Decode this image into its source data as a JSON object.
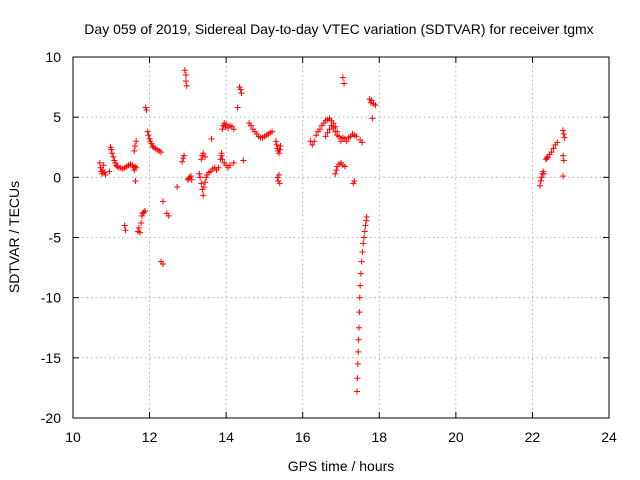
{
  "chart_data": {
    "type": "scatter",
    "title": "Day 059 of 2019, Sidereal Day-to-day VTEC variation (SDTVAR) for receiver tgmx",
    "xlabel": "GPS time / hours",
    "ylabel": "SDTVAR / TECUs",
    "xlim": [
      10,
      24
    ],
    "ylim": [
      -20,
      10
    ],
    "xticks": [
      "10",
      "12",
      "14",
      "16",
      "18",
      "20",
      "22",
      "24"
    ],
    "yticks": [
      "10",
      "5",
      "0",
      "-5",
      "-10",
      "-15",
      "-20"
    ],
    "grid": true,
    "marker": "plus",
    "series": [
      {
        "name": "SDTVAR",
        "color": "#ff0000",
        "x": [
          10.7,
          10.72,
          10.74,
          10.76,
          10.78,
          10.8,
          10.82,
          10.85,
          10.95,
          10.98,
          11.0,
          11.02,
          11.05,
          11.08,
          11.1,
          11.13,
          11.16,
          11.2,
          11.25,
          11.3,
          11.35,
          11.4,
          11.45,
          11.5,
          11.55,
          11.58,
          11.6,
          11.62,
          11.65,
          11.6,
          11.62,
          11.65,
          11.63,
          11.35,
          11.37,
          11.7,
          11.72,
          11.75,
          11.78,
          11.8,
          11.82,
          11.85,
          11.88,
          11.9,
          11.92,
          11.95,
          11.97,
          12.0,
          12.02,
          12.05,
          12.08,
          12.1,
          12.15,
          12.2,
          12.25,
          12.3,
          12.3,
          12.35,
          12.45,
          12.5,
          12.35,
          12.72,
          12.85,
          12.88,
          12.9,
          12.92,
          12.95,
          12.95,
          12.97,
          13.0,
          13.02,
          13.05,
          13.08,
          13.1,
          13.3,
          13.32,
          13.35,
          13.38,
          13.4,
          13.42,
          13.45,
          13.48,
          13.5,
          13.55,
          13.6,
          13.65,
          13.7,
          13.75,
          13.35,
          13.38,
          13.4,
          13.45,
          13.62,
          13.8,
          13.85,
          13.88,
          13.9,
          13.92,
          13.95,
          13.98,
          14.0,
          14.05,
          14.1,
          14.15,
          14.2,
          13.88,
          13.9,
          13.95,
          14.0,
          14.05,
          14.1,
          14.2,
          14.3,
          14.35,
          14.38,
          14.4,
          14.45,
          14.6,
          14.65,
          14.7,
          14.75,
          14.8,
          14.85,
          14.9,
          14.95,
          15.0,
          15.05,
          15.1,
          15.15,
          15.2,
          15.3,
          15.32,
          15.34,
          15.36,
          15.38,
          15.4,
          15.42,
          15.34,
          15.36,
          15.38,
          15.4,
          16.2,
          16.25,
          16.3,
          16.35,
          16.4,
          16.45,
          16.5,
          16.55,
          16.6,
          16.65,
          16.7,
          16.75,
          16.8,
          16.85,
          16.9,
          16.95,
          17.0,
          16.6,
          16.65,
          16.7,
          16.75,
          16.8,
          16.85,
          16.9,
          17.0,
          17.05,
          17.1,
          17.15,
          17.2,
          17.25,
          17.3,
          17.35,
          17.4,
          16.85,
          16.88,
          16.9,
          16.95,
          17.0,
          17.05,
          17.1,
          17.05,
          17.08,
          17.32,
          17.35,
          17.5,
          17.55,
          17.75,
          17.78,
          17.8,
          17.85,
          17.9,
          17.82,
          17.42,
          17.43,
          17.44,
          17.45,
          17.46,
          17.47,
          17.48,
          17.49,
          17.5,
          17.52,
          17.54,
          17.56,
          17.58,
          17.6,
          17.62,
          17.64,
          17.66,
          17.67,
          22.2,
          22.22,
          22.24,
          22.26,
          22.28,
          22.3,
          22.35,
          22.38,
          22.4,
          22.45,
          22.5,
          22.55,
          22.6,
          22.65,
          22.8,
          22.82,
          22.84,
          22.8,
          22.82,
          22.8
        ],
        "y": [
          1.2,
          0.8,
          0.5,
          0.3,
          0.6,
          1.0,
          0.4,
          0.2,
          0.5,
          2.5,
          2.3,
          2.0,
          1.7,
          1.4,
          1.2,
          1.0,
          0.9,
          0.8,
          0.8,
          0.7,
          0.8,
          0.9,
          1.0,
          1.1,
          1.0,
          0.8,
          0.6,
          0.9,
          0.8,
          2.2,
          2.6,
          3.0,
          -0.3,
          -4.0,
          -4.4,
          -4.5,
          -4.2,
          -4.6,
          -3.8,
          -3.2,
          -3.0,
          -2.9,
          -2.8,
          5.8,
          5.6,
          3.8,
          3.5,
          3.2,
          3.0,
          2.8,
          2.6,
          2.5,
          2.4,
          2.3,
          2.2,
          2.1,
          -7.0,
          -7.2,
          -3.0,
          -3.2,
          -2.0,
          -0.8,
          1.3,
          1.6,
          1.8,
          8.9,
          8.5,
          8.0,
          7.6,
          -0.2,
          -0.1,
          0.0,
          0.1,
          -0.2,
          0.3,
          0.0,
          -0.5,
          -1.0,
          -1.5,
          -0.8,
          -0.4,
          0.0,
          0.2,
          0.4,
          0.5,
          0.7,
          0.8,
          0.6,
          1.5,
          1.8,
          2.0,
          1.7,
          3.2,
          0.8,
          1.5,
          2.0,
          4.0,
          4.3,
          4.5,
          4.2,
          4.4,
          4.1,
          4.3,
          4.2,
          4.0,
          1.8,
          1.5,
          1.2,
          1.0,
          0.8,
          1.0,
          1.2,
          5.8,
          7.5,
          7.3,
          7.0,
          1.4,
          4.5,
          4.3,
          4.0,
          3.8,
          3.6,
          3.4,
          3.3,
          3.3,
          3.4,
          3.5,
          3.6,
          3.7,
          3.8,
          3.0,
          2.7,
          2.4,
          2.2,
          2.0,
          2.3,
          2.6,
          0.0,
          -0.3,
          0.2,
          -0.5,
          3.0,
          2.7,
          3.0,
          3.5,
          3.8,
          4.0,
          4.3,
          4.5,
          4.7,
          4.8,
          4.9,
          4.7,
          4.5,
          4.2,
          3.8,
          3.4,
          3.0,
          3.4,
          3.7,
          4.0,
          4.3,
          4.1,
          3.8,
          3.5,
          3.2,
          3.3,
          3.2,
          3.0,
          3.3,
          3.4,
          3.6,
          3.5,
          3.4,
          0.3,
          0.6,
          0.9,
          1.1,
          1.2,
          1.0,
          0.9,
          8.3,
          7.8,
          -0.5,
          -0.3,
          3.1,
          2.9,
          6.5,
          6.2,
          6.4,
          6.1,
          6.0,
          4.9,
          -17.8,
          -16.7,
          -15.5,
          -14.5,
          -13.5,
          -12.5,
          -11.2,
          -10.0,
          -9.0,
          -8.0,
          -7.0,
          -6.2,
          -5.5,
          -5.0,
          -4.5,
          -4.0,
          -3.6,
          -3.3,
          -0.7,
          -0.3,
          0.0,
          0.3,
          0.5,
          0.3,
          1.5,
          1.6,
          1.7,
          1.9,
          2.1,
          2.4,
          2.7,
          2.9,
          3.9,
          3.6,
          3.3,
          1.8,
          1.4,
          0.1
        ]
      }
    ]
  }
}
